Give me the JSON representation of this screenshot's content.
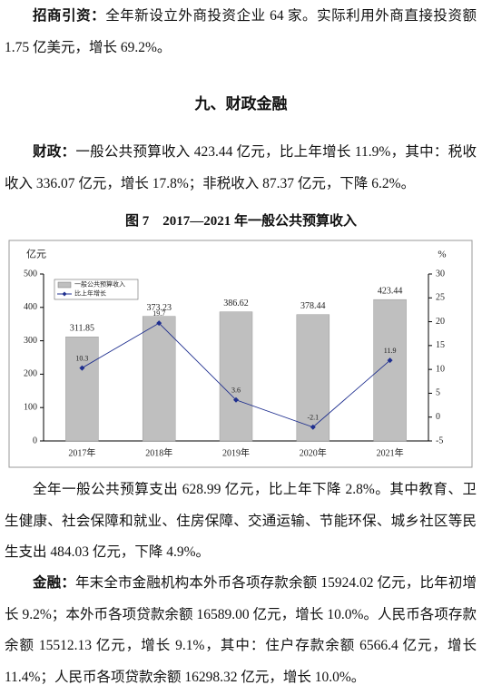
{
  "paragraphs_top": [
    {
      "lead": "招商引资：",
      "text": "全年新设立外商投资企业 64 家。实际利用外商直接投资额 1.75 亿美元，增长 69.2%。"
    }
  ],
  "heading": "九、财政金融",
  "finance_paragraph": {
    "lead": "财政：",
    "text": "一般公共预算收入 423.44 亿元，比上年增长 11.9%，其中：税收收入 336.07 亿元，增长 17.8%；非税收入 87.37 亿元，下降 6.2%。"
  },
  "figure_title": "图 7　2017—2021 年一般公共预算收入",
  "chart_data": {
    "type": "bar",
    "y_unit": "亿元",
    "y2_unit": "%",
    "categories": [
      "2017年",
      "2018年",
      "2019年",
      "2020年",
      "2021年"
    ],
    "series": [
      {
        "name": "一般公共预算收入",
        "type": "bar",
        "color": "#bfbfbf",
        "values": [
          311.85,
          373.23,
          386.62,
          378.44,
          423.44
        ]
      },
      {
        "name": "比上年增长",
        "type": "line",
        "axis": "y2",
        "color": "#1f2f8f",
        "values": [
          10.3,
          19.7,
          3.6,
          -2.1,
          11.9
        ]
      }
    ],
    "ylim": [
      0,
      500
    ],
    "yticks": [
      0,
      100,
      200,
      300,
      400,
      500
    ],
    "y2lim": [
      -5,
      30
    ],
    "y2ticks": [
      -5,
      0,
      5,
      10,
      15,
      20,
      25,
      30
    ],
    "grid": false,
    "legend": "top-left"
  },
  "paragraphs_bottom": [
    {
      "lead": "",
      "text": "全年一般公共预算支出 628.99 亿元，比上年下降 2.8%。其中教育、卫生健康、社会保障和就业、住房保障、交通运输、节能环保、城乡社区等民生支出 484.03 亿元，下降 4.9%。"
    },
    {
      "lead": "金融：",
      "text": "年末全市金融机构本外币各项存款余额 15924.02 亿元，比年初增长 9.2%；本外币各项贷款余额 16589.00 亿元，增长 10.0%。人民币各项存款余额 15512.13 亿元，增长 9.1%，其中：住户存款余额 6566.4 亿元，增长 11.4%；人民币各项贷款余额 16298.32 亿元，增长 10.0%。"
    }
  ]
}
